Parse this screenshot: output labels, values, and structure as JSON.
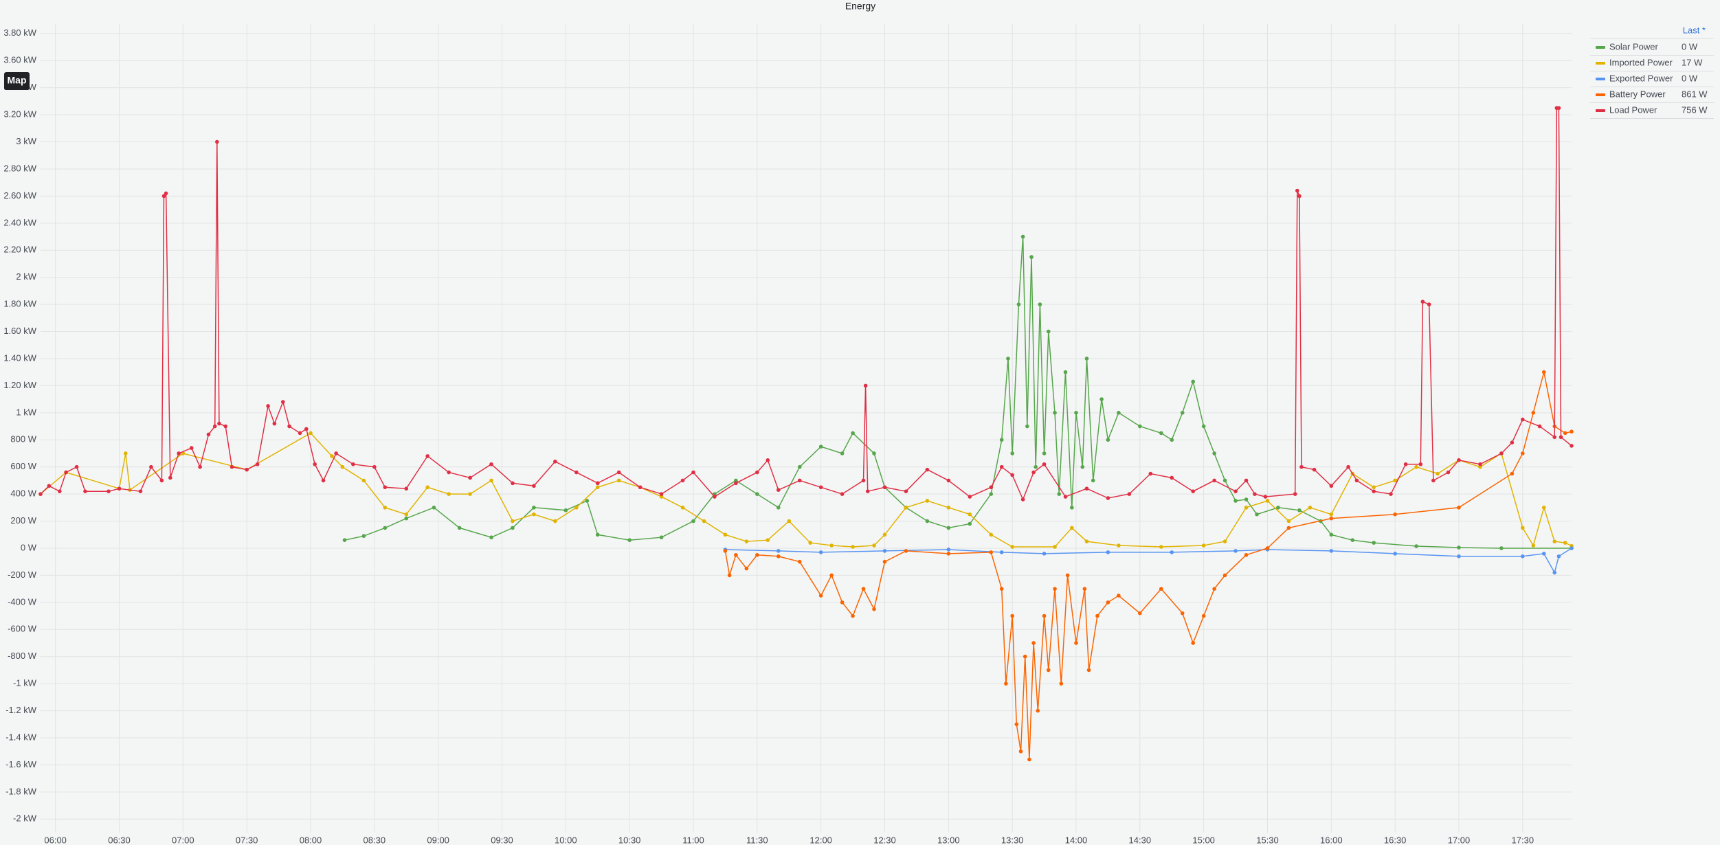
{
  "chart_data": {
    "type": "line",
    "title": "Energy",
    "xlim": [
      "05:53",
      "17:53"
    ],
    "xticks": [
      "06:00",
      "06:30",
      "07:00",
      "07:30",
      "08:00",
      "08:30",
      "09:00",
      "09:30",
      "10:00",
      "10:30",
      "11:00",
      "11:30",
      "12:00",
      "12:30",
      "13:00",
      "13:30",
      "14:00",
      "14:30",
      "15:00",
      "15:30",
      "16:00",
      "16:30",
      "17:00",
      "17:30"
    ],
    "ylim": [
      -2100,
      3870
    ],
    "yticks": [
      {
        "value": 3800,
        "label": "3.80 kW"
      },
      {
        "value": 3600,
        "label": "3.60 kW"
      },
      {
        "value": 3400,
        "label": "3.40 kW"
      },
      {
        "value": 3200,
        "label": "3.20 kW"
      },
      {
        "value": 3000,
        "label": "3 kW"
      },
      {
        "value": 2800,
        "label": "2.80 kW"
      },
      {
        "value": 2600,
        "label": "2.60 kW"
      },
      {
        "value": 2400,
        "label": "2.40 kW"
      },
      {
        "value": 2200,
        "label": "2.20 kW"
      },
      {
        "value": 2000,
        "label": "2 kW"
      },
      {
        "value": 1800,
        "label": "1.80 kW"
      },
      {
        "value": 1600,
        "label": "1.60 kW"
      },
      {
        "value": 1400,
        "label": "1.40 kW"
      },
      {
        "value": 1200,
        "label": "1.20 kW"
      },
      {
        "value": 1000,
        "label": "1 kW"
      },
      {
        "value": 800,
        "label": "800 W"
      },
      {
        "value": 600,
        "label": "600 W"
      },
      {
        "value": 400,
        "label": "400 W"
      },
      {
        "value": 200,
        "label": "200 W"
      },
      {
        "value": 0,
        "label": "0 W"
      },
      {
        "value": -200,
        "label": "-200 W"
      },
      {
        "value": -400,
        "label": "-400 W"
      },
      {
        "value": -600,
        "label": "-600 W"
      },
      {
        "value": -800,
        "label": "-800 W"
      },
      {
        "value": -1000,
        "label": "-1 kW"
      },
      {
        "value": -1200,
        "label": "-1.2 kW"
      },
      {
        "value": -1400,
        "label": "-1.4 kW"
      },
      {
        "value": -1600,
        "label": "-1.6 kW"
      },
      {
        "value": -1800,
        "label": "-1.8 kW"
      },
      {
        "value": -2000,
        "label": "-2 kW"
      }
    ],
    "grid": true,
    "legend": "top-right",
    "legend_header": "Last *",
    "button": "Map",
    "series": [
      {
        "name": "Solar Power",
        "color": "#56a64b",
        "last": "0 W",
        "x": [
          "08:16",
          "08:25",
          "08:35",
          "08:45",
          "08:58",
          "09:10",
          "09:25",
          "09:35",
          "09:45",
          "10:00",
          "10:10",
          "10:15",
          "10:30",
          "10:45",
          "11:00",
          "11:10",
          "11:20",
          "11:30",
          "11:40",
          "11:50",
          "12:00",
          "12:10",
          "12:15",
          "12:25",
          "12:30",
          "12:40",
          "12:50",
          "13:00",
          "13:10",
          "13:20",
          "13:25",
          "13:28",
          "13:30",
          "13:33",
          "13:35",
          "13:37",
          "13:39",
          "13:41",
          "13:43",
          "13:45",
          "13:47",
          "13:50",
          "13:52",
          "13:55",
          "13:58",
          "14:00",
          "14:03",
          "14:05",
          "14:08",
          "14:12",
          "14:15",
          "14:20",
          "14:30",
          "14:40",
          "14:45",
          "14:50",
          "14:55",
          "15:00",
          "15:05",
          "15:10",
          "15:15",
          "15:20",
          "15:25",
          "15:35",
          "15:45",
          "15:55",
          "16:00",
          "16:10",
          "16:20",
          "16:40",
          "17:00",
          "17:20",
          "17:53"
        ],
        "values": [
          60,
          90,
          150,
          220,
          300,
          150,
          80,
          150,
          300,
          280,
          350,
          100,
          60,
          80,
          200,
          400,
          500,
          400,
          300,
          600,
          750,
          700,
          850,
          700,
          450,
          300,
          200,
          150,
          180,
          400,
          800,
          1400,
          700,
          1800,
          2300,
          900,
          2150,
          600,
          1800,
          700,
          1600,
          1000,
          400,
          1300,
          300,
          1000,
          600,
          1400,
          500,
          1100,
          800,
          1000,
          900,
          850,
          800,
          1000,
          1230,
          900,
          700,
          500,
          350,
          360,
          250,
          300,
          280,
          200,
          100,
          60,
          40,
          15,
          5,
          0,
          0
        ]
      },
      {
        "name": "Imported Power",
        "color": "#e0b400",
        "last": "17 W",
        "x": [
          "05:53",
          "06:05",
          "06:30",
          "06:33",
          "06:35",
          "07:00",
          "07:30",
          "08:00",
          "08:10",
          "08:15",
          "08:25",
          "08:35",
          "08:45",
          "08:55",
          "09:05",
          "09:15",
          "09:25",
          "09:35",
          "09:45",
          "09:55",
          "10:05",
          "10:15",
          "10:25",
          "10:35",
          "10:45",
          "10:55",
          "11:05",
          "11:15",
          "11:25",
          "11:35",
          "11:45",
          "11:55",
          "12:05",
          "12:15",
          "12:25",
          "12:30",
          "12:40",
          "12:50",
          "13:00",
          "13:10",
          "13:20",
          "13:30",
          "13:50",
          "13:58",
          "14:05",
          "14:20",
          "14:40",
          "15:00",
          "15:10",
          "15:20",
          "15:30",
          "15:40",
          "15:50",
          "16:00",
          "16:10",
          "16:20",
          "16:30",
          "16:40",
          "16:50",
          "17:00",
          "17:10",
          "17:20",
          "17:30",
          "17:35",
          "17:40",
          "17:45",
          "17:50",
          "17:53"
        ],
        "values": [
          400,
          560,
          440,
          700,
          430,
          700,
          580,
          850,
          680,
          600,
          500,
          300,
          250,
          450,
          400,
          400,
          500,
          200,
          250,
          200,
          300,
          450,
          500,
          450,
          380,
          300,
          200,
          100,
          50,
          60,
          200,
          40,
          20,
          10,
          20,
          100,
          300,
          350,
          300,
          250,
          100,
          10,
          10,
          150,
          50,
          20,
          10,
          20,
          50,
          300,
          350,
          200,
          300,
          250,
          550,
          450,
          500,
          600,
          550,
          650,
          600,
          700,
          150,
          20,
          300,
          50,
          40,
          17
        ]
      },
      {
        "name": "Exported Power",
        "color": "#5794f2",
        "last": "0 W",
        "x": [
          "11:15",
          "11:40",
          "12:00",
          "12:30",
          "13:00",
          "13:25",
          "13:45",
          "14:15",
          "14:45",
          "15:15",
          "15:30",
          "16:00",
          "16:30",
          "17:00",
          "17:30",
          "17:40",
          "17:45",
          "17:47",
          "17:53"
        ],
        "values": [
          -10,
          -20,
          -30,
          -20,
          -10,
          -30,
          -40,
          -30,
          -30,
          -20,
          -10,
          -20,
          -40,
          -60,
          -60,
          -40,
          -180,
          -60,
          0
        ]
      },
      {
        "name": "Battery Power",
        "color": "#fa6400",
        "last": "861 W",
        "x": [
          "11:15",
          "11:17",
          "11:20",
          "11:25",
          "11:30",
          "11:40",
          "11:50",
          "12:00",
          "12:05",
          "12:10",
          "12:15",
          "12:20",
          "12:25",
          "12:30",
          "12:40",
          "13:00",
          "13:20",
          "13:25",
          "13:27",
          "13:30",
          "13:32",
          "13:34",
          "13:36",
          "13:38",
          "13:40",
          "13:42",
          "13:45",
          "13:47",
          "13:50",
          "13:53",
          "13:56",
          "14:00",
          "14:04",
          "14:06",
          "14:10",
          "14:15",
          "14:20",
          "14:30",
          "14:40",
          "14:50",
          "14:55",
          "15:00",
          "15:05",
          "15:10",
          "15:20",
          "15:30",
          "15:40",
          "16:00",
          "16:30",
          "17:00",
          "17:25",
          "17:30",
          "17:35",
          "17:40",
          "17:45",
          "17:50",
          "17:53"
        ],
        "values": [
          -20,
          -200,
          -50,
          -150,
          -50,
          -60,
          -100,
          -350,
          -200,
          -400,
          -500,
          -300,
          -450,
          -100,
          -20,
          -40,
          -30,
          -300,
          -1000,
          -500,
          -1300,
          -1500,
          -800,
          -1560,
          -700,
          -1200,
          -500,
          -900,
          -300,
          -1000,
          -200,
          -700,
          -300,
          -900,
          -500,
          -400,
          -350,
          -480,
          -300,
          -480,
          -700,
          -500,
          -300,
          -200,
          -50,
          0,
          150,
          220,
          250,
          300,
          550,
          700,
          1000,
          1300,
          900,
          850,
          861
        ]
      },
      {
        "name": "Load Power",
        "color": "#e02f44",
        "last": "756 W",
        "x": [
          "05:53",
          "05:57",
          "06:02",
          "06:05",
          "06:10",
          "06:14",
          "06:25",
          "06:30",
          "06:40",
          "06:45",
          "06:50",
          "06:51",
          "06:52",
          "06:54",
          "06:58",
          "07:04",
          "07:08",
          "07:12",
          "07:15",
          "07:16",
          "07:17",
          "07:20",
          "07:23",
          "07:30",
          "07:35",
          "07:40",
          "07:43",
          "07:47",
          "07:50",
          "07:55",
          "07:58",
          "08:02",
          "08:06",
          "08:12",
          "08:20",
          "08:30",
          "08:35",
          "08:45",
          "08:55",
          "09:05",
          "09:15",
          "09:25",
          "09:35",
          "09:45",
          "09:55",
          "10:05",
          "10:15",
          "10:25",
          "10:35",
          "10:45",
          "10:55",
          "11:00",
          "11:10",
          "11:20",
          "11:30",
          "11:35",
          "11:40",
          "11:50",
          "12:00",
          "12:10",
          "12:20",
          "12:21",
          "12:22",
          "12:30",
          "12:40",
          "12:50",
          "13:00",
          "13:10",
          "13:20",
          "13:25",
          "13:30",
          "13:35",
          "13:40",
          "13:45",
          "13:55",
          "14:05",
          "14:15",
          "14:25",
          "14:35",
          "14:45",
          "14:55",
          "15:05",
          "15:15",
          "15:20",
          "15:24",
          "15:29",
          "15:43",
          "15:44",
          "15:45",
          "15:46",
          "15:52",
          "16:00",
          "16:08",
          "16:12",
          "16:20",
          "16:28",
          "16:35",
          "16:42",
          "16:43",
          "16:46",
          "16:48",
          "16:55",
          "17:00",
          "17:10",
          "17:20",
          "17:25",
          "17:30",
          "17:38",
          "17:45",
          "17:46",
          "17:47",
          "17:48",
          "17:53"
        ],
        "values": [
          400,
          460,
          420,
          560,
          600,
          420,
          420,
          440,
          420,
          600,
          500,
          2600,
          2620,
          520,
          700,
          740,
          600,
          840,
          900,
          3000,
          920,
          900,
          600,
          580,
          620,
          1050,
          920,
          1080,
          900,
          850,
          880,
          620,
          500,
          700,
          620,
          600,
          450,
          440,
          680,
          560,
          520,
          620,
          480,
          460,
          640,
          560,
          480,
          560,
          450,
          400,
          500,
          560,
          380,
          480,
          560,
          650,
          430,
          500,
          450,
          400,
          500,
          1200,
          420,
          450,
          420,
          580,
          500,
          380,
          450,
          600,
          540,
          360,
          560,
          620,
          380,
          440,
          370,
          400,
          550,
          520,
          420,
          500,
          420,
          500,
          400,
          380,
          400,
          2640,
          2600,
          600,
          580,
          460,
          600,
          500,
          420,
          400,
          620,
          620,
          1820,
          1800,
          500,
          560,
          650,
          620,
          700,
          780,
          950,
          900,
          820,
          3250,
          3250,
          820,
          756
        ]
      }
    ]
  }
}
